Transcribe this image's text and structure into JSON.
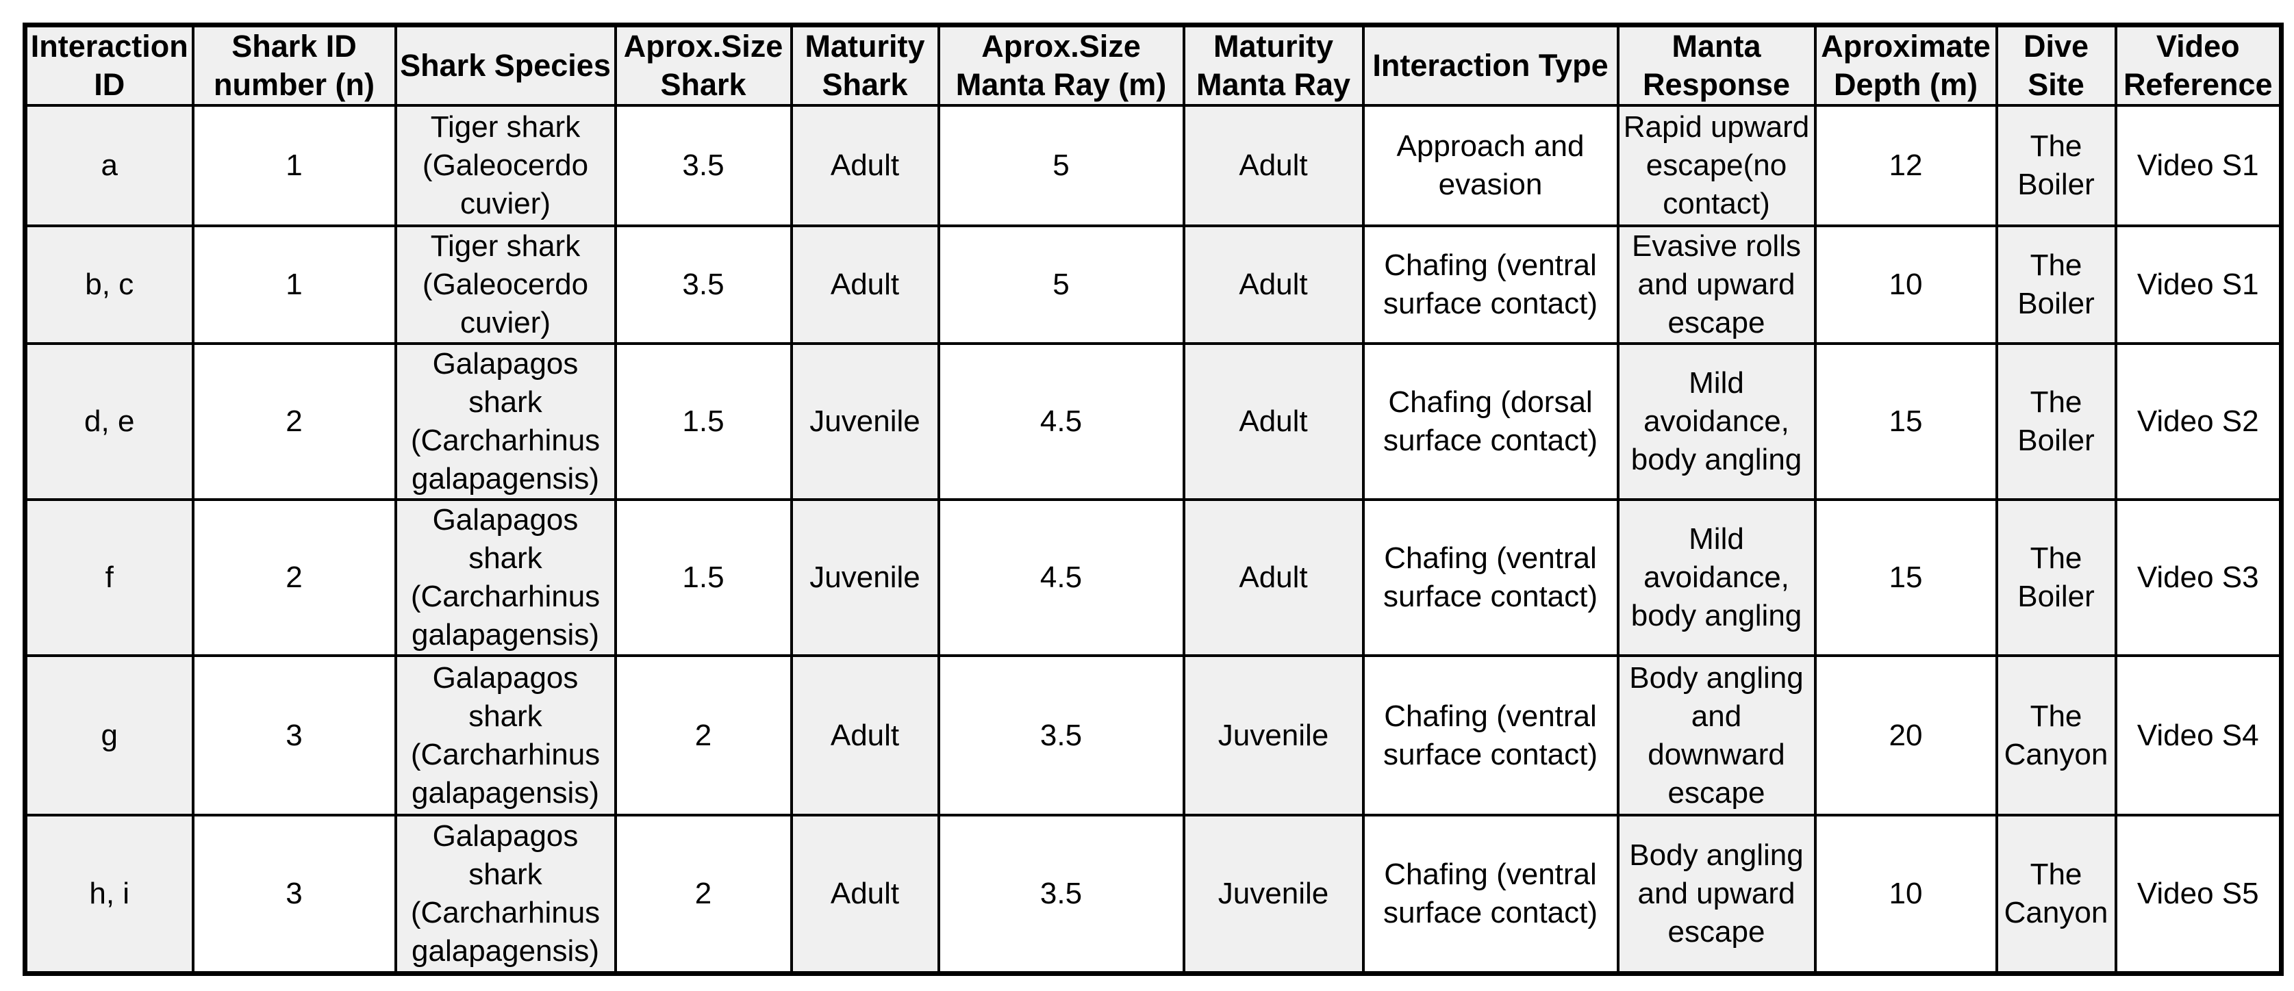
{
  "colors": {
    "shaded_column_bg": "#f0f0f0",
    "border": "#000000",
    "text": "#000000",
    "page_bg": "#ffffff"
  },
  "table": {
    "columns": [
      "Interaction ID",
      "Shark ID number (n)",
      "Shark Species",
      "Aprox.Size Shark",
      "Maturity Shark",
      "Aprox.Size Manta Ray (m)",
      "Maturity Manta Ray",
      "Interaction Type",
      "Manta Response",
      "Aproximate Depth (m)",
      "Dive Site",
      "Video Reference"
    ],
    "rows": [
      [
        "a",
        "1",
        "Tiger shark (Galeocerdo cuvier)",
        "3.5",
        "Adult",
        "5",
        "Adult",
        "Approach and evasion",
        "Rapid upward escape(no contact)",
        "12",
        "The Boiler",
        "Video S1"
      ],
      [
        "b, c",
        "1",
        "Tiger shark (Galeocerdo cuvier)",
        "3.5",
        "Adult",
        "5",
        "Adult",
        "Chafing (ventral surface contact)",
        "Evasive rolls and upward escape",
        "10",
        "The Boiler",
        "Video S1"
      ],
      [
        "d, e",
        "2",
        "Galapagos shark (Carcharhinus galapagensis)",
        "1.5",
        "Juvenile",
        "4.5",
        "Adult",
        "Chafing (dorsal surface contact)",
        "Mild avoidance, body angling",
        "15",
        "The Boiler",
        "Video S2"
      ],
      [
        "f",
        "2",
        "Galapagos shark (Carcharhinus galapagensis)",
        "1.5",
        "Juvenile",
        "4.5",
        "Adult",
        "Chafing (ventral surface contact)",
        "Mild avoidance, body angling",
        "15",
        "The Boiler",
        "Video S3"
      ],
      [
        "g",
        "3",
        "Galapagos shark (Carcharhinus galapagensis)",
        "2",
        "Adult",
        "3.5",
        "Juvenile",
        "Chafing (ventral surface contact)",
        "Body angling and downward escape",
        "20",
        "The Canyon",
        "Video S4"
      ],
      [
        "h, i",
        "3",
        "Galapagos shark (Carcharhinus galapagensis)",
        "2",
        "Adult",
        "3.5",
        "Juvenile",
        "Chafing (ventral surface contact)",
        "Body angling and upward escape",
        "10",
        "The Canyon",
        "Video S5"
      ]
    ]
  }
}
